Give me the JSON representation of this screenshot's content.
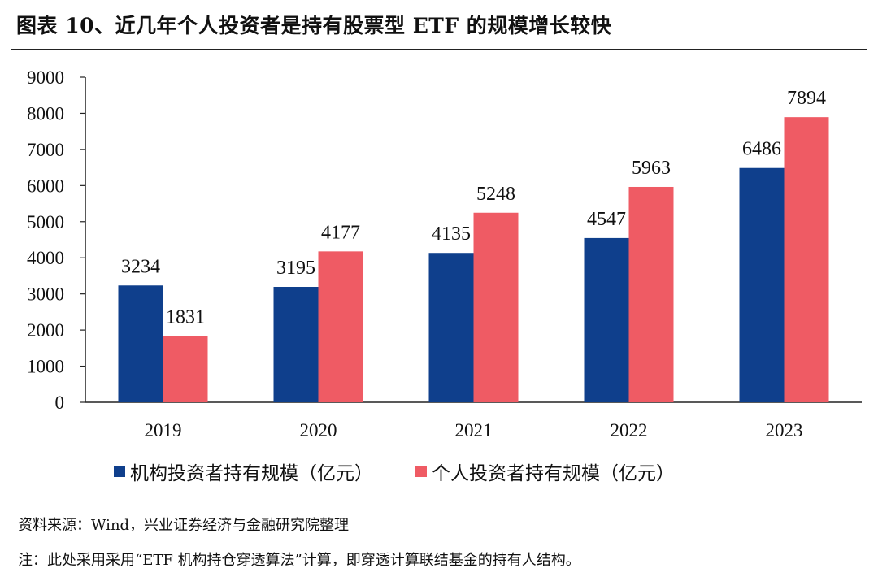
{
  "title": "图表 10、近几年个人投资者是持有股票型 ETF 的规模增长较快",
  "source": "资料来源：Wind，兴业证券经济与金融研究院整理",
  "note": "注：此处采用采用“ETF 机构持仓穿透算法”计算，即穿透计算联结基金的持有人结构。",
  "colors": {
    "institution": "#0f3f8c",
    "individual": "#ef5b64"
  },
  "chart_data": {
    "type": "bar",
    "categories": [
      "2019",
      "2020",
      "2021",
      "2022",
      "2023"
    ],
    "series": [
      {
        "name": "机构投资者持有规模（亿元）",
        "values": [
          3234,
          3195,
          4135,
          4547,
          6486
        ]
      },
      {
        "name": "个人投资者持有规模（亿元）",
        "values": [
          1831,
          4177,
          5248,
          5963,
          7894
        ]
      }
    ],
    "ylim": [
      0,
      9000
    ],
    "yticks": [
      0,
      1000,
      2000,
      3000,
      4000,
      5000,
      6000,
      7000,
      8000,
      9000
    ],
    "grid": false,
    "legend_position": "bottom",
    "data_labels": true
  }
}
